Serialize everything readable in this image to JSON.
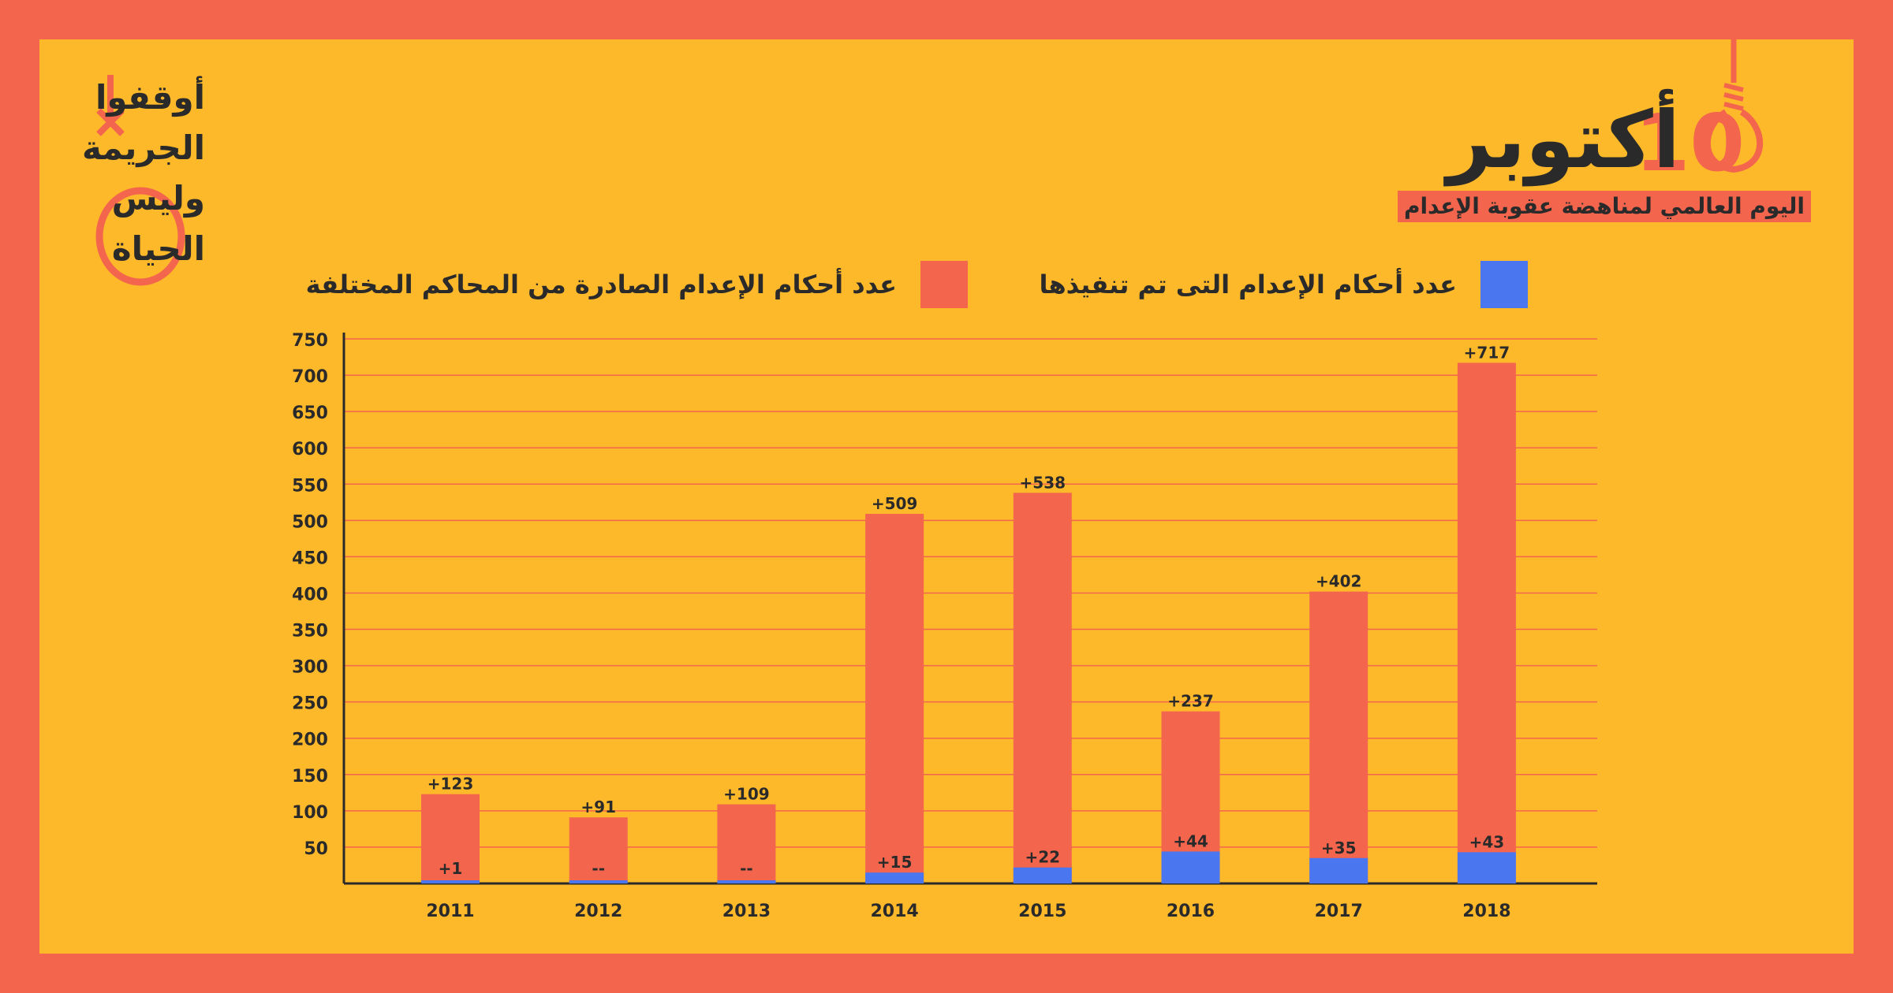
{
  "header": {
    "title_word": "أكتوبر",
    "title_number": "10",
    "subtitle": "اليوم العالمي لمناهضة عقوبة الإعدام"
  },
  "logo": {
    "lines": [
      "أوقفوا",
      "الجريمة",
      "وليس",
      "الحياة"
    ]
  },
  "colors": {
    "background": "#FDB92A",
    "border": "#F4654E",
    "issued": "#F4654E",
    "executed": "#4A76F0",
    "text": "#2A2A2A"
  },
  "chart_data": {
    "type": "bar",
    "stacked": false,
    "categories": [
      "2011",
      "2012",
      "2013",
      "2014",
      "2015",
      "2016",
      "2017",
      "2018"
    ],
    "series": [
      {
        "name": "عدد أحكام الإعدام الصادرة من المحاكم المختلفة",
        "color": "#F4654E",
        "values": [
          123,
          91,
          109,
          509,
          538,
          237,
          402,
          717
        ],
        "labels": [
          "+123",
          "+91",
          "+109",
          "+509",
          "+538",
          "+237",
          "+402",
          "+717"
        ]
      },
      {
        "name": "عدد أحكام الإعدام التى تم تنفيذها",
        "color": "#4A76F0",
        "values": [
          1,
          0,
          0,
          15,
          22,
          44,
          35,
          43
        ],
        "labels": [
          "+1",
          "--",
          "--",
          "+15",
          "+22",
          "+44",
          "+35",
          "+43"
        ]
      }
    ],
    "ylim": [
      0,
      750
    ],
    "yticks": [
      50,
      100,
      150,
      200,
      250,
      300,
      350,
      400,
      450,
      500,
      550,
      600,
      650,
      700,
      750
    ],
    "grid": true,
    "legend_position": "top"
  }
}
